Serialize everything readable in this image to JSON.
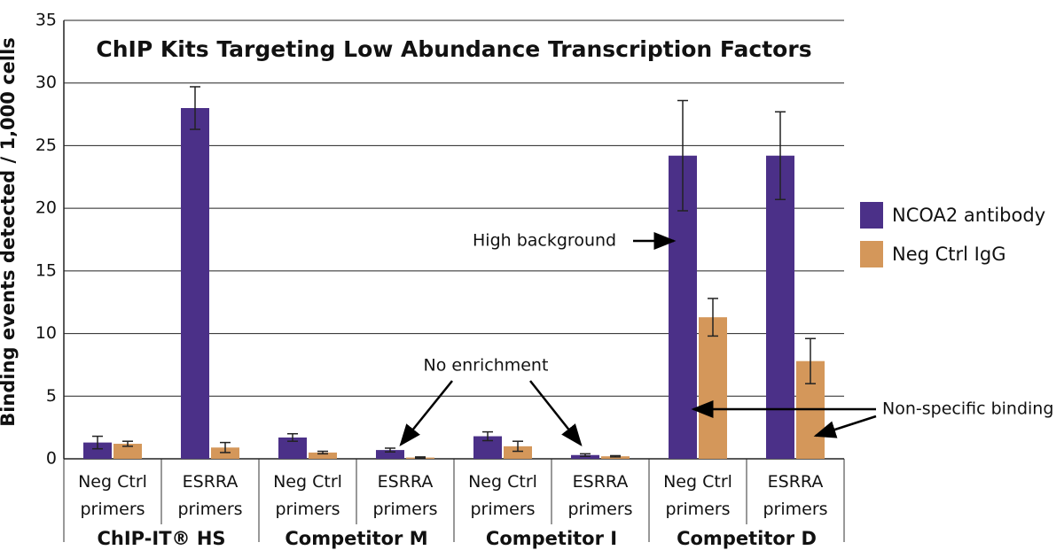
{
  "chart_data": {
    "type": "bar",
    "title": "ChIP Kits Targeting Low Abundance Transcription Factors",
    "y_label": "Binding events detected / 1,000 cells",
    "categories": [
      "Neg Ctrl primers",
      "ESRRA primers",
      "Neg Ctrl primers",
      "ESRRA primers",
      "Neg Ctrl primers",
      "ESRRA primers",
      "Neg Ctrl primers",
      "ESRRA primers"
    ],
    "groups": [
      "ChIP-IT® HS",
      "Competitor M",
      "Competitor I",
      "Competitor D"
    ],
    "series": [
      {
        "name": "NCOA2 antibody",
        "color": "#4b3088",
        "values": [
          1.3,
          28,
          1.7,
          0.7,
          1.8,
          0.3,
          24.2,
          24.2
        ],
        "errors": [
          0.5,
          1.7,
          0.3,
          0.15,
          0.35,
          0.1,
          4.4,
          3.5
        ]
      },
      {
        "name": "Neg Ctrl IgG",
        "color": "#d4975a",
        "values": [
          1.2,
          0.9,
          0.5,
          0.1,
          1.0,
          0.2,
          11.3,
          7.8
        ],
        "errors": [
          0.2,
          0.4,
          0.1,
          0.05,
          0.4,
          0.05,
          1.5,
          1.8
        ]
      }
    ],
    "ylim": [
      0,
      35
    ],
    "yticks": [
      0,
      5,
      10,
      15,
      20,
      25,
      30,
      35
    ],
    "grid": true,
    "legend": "right",
    "annotations": [
      "High background",
      "No enrichment",
      "Non-specific binding"
    ]
  }
}
